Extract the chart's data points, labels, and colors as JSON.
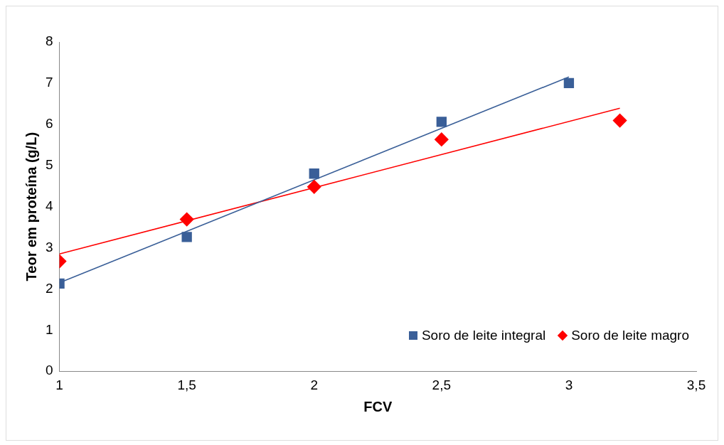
{
  "chart_data": {
    "type": "scatter",
    "xlabel": "FCV",
    "ylabel": "Teor em proteína (g/L)",
    "xlim": [
      1,
      3.5
    ],
    "xticks": [
      1,
      {
        "value": 1.5,
        "label": "1,5"
      },
      2,
      {
        "value": 2.5,
        "label": "2,5"
      },
      3,
      {
        "value": 3.5,
        "label": "3,5"
      }
    ],
    "ylim": [
      0,
      8
    ],
    "yticks": [
      0,
      1,
      2,
      3,
      4,
      5,
      6,
      7,
      8
    ],
    "grid": false,
    "legend": "bottom right",
    "series": [
      {
        "name": "Soro de leite integral",
        "color": "#3a5f98",
        "marker": "square",
        "x": [
          1,
          1.5,
          2,
          2.5,
          3
        ],
        "values": [
          2.13,
          3.26,
          4.8,
          6.06,
          7.0
        ]
      },
      {
        "name": "Soro de leite magro",
        "color": "#ff0000",
        "marker": "diamond",
        "x": [
          1,
          1.5,
          2,
          2.5,
          3.2
        ],
        "values": [
          2.67,
          3.69,
          4.48,
          5.63,
          6.09
        ]
      },
      {
        "type": "line",
        "color": "#3a5f98",
        "marker": "none",
        "x": [
          1,
          3
        ],
        "values": [
          2.15,
          7.15
        ]
      },
      {
        "type": "line",
        "color": "#ff0000",
        "marker": "none",
        "x": [
          1,
          3.2
        ],
        "values": [
          2.85,
          6.39
        ]
      }
    ]
  }
}
